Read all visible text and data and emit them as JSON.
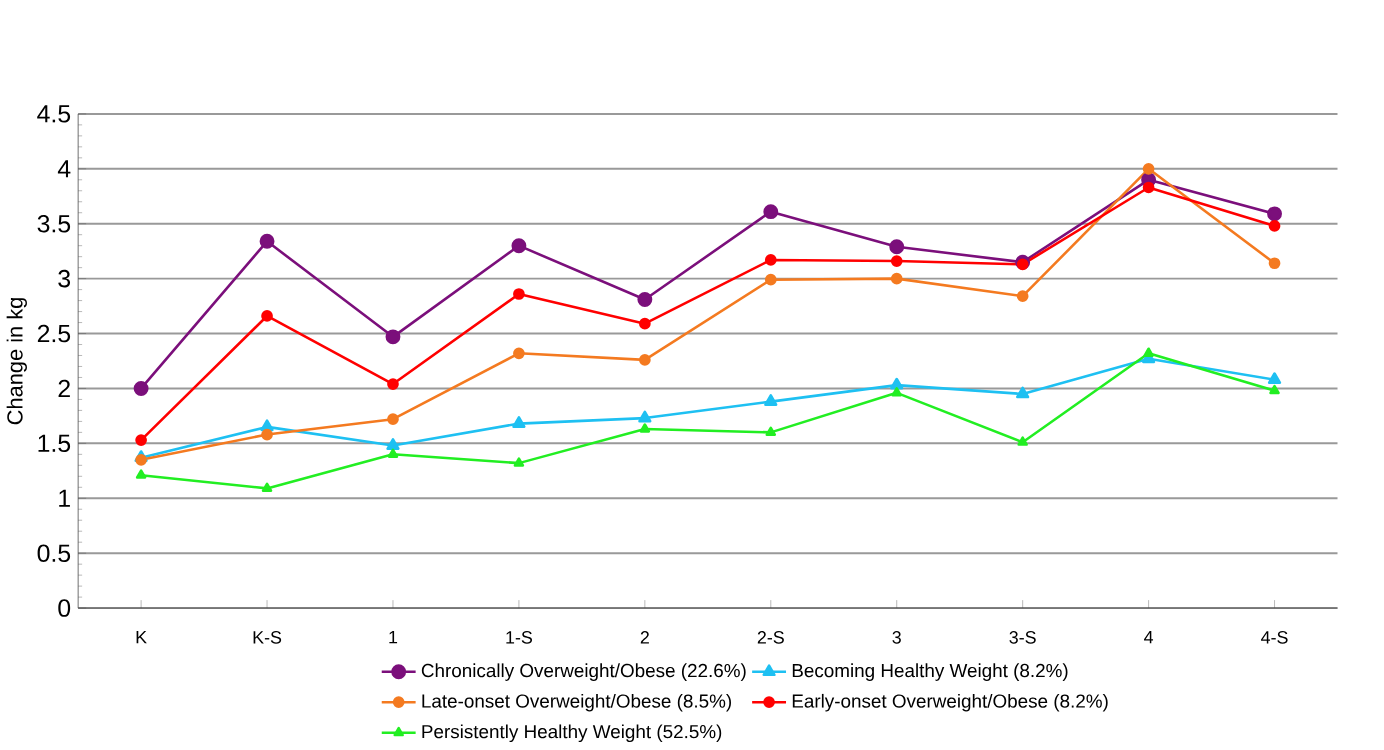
{
  "chart_data": {
    "type": "line",
    "ylabel": "Change in kg",
    "categories": [
      "K",
      "K-S",
      "1",
      "1-S",
      "2",
      "2-S",
      "3",
      "3-S",
      "4",
      "4-S"
    ],
    "ylim": [
      0,
      4.5
    ],
    "yticks": [
      0,
      0.5,
      1,
      1.5,
      2,
      2.5,
      3,
      3.5,
      4,
      4.5
    ],
    "grid": "y",
    "legend": "bottom",
    "series": [
      {
        "name": "Chronically Overweight/Obese (22.6%)",
        "color": "#7b0f7b",
        "marker": "circle",
        "values": [
          2.0,
          3.34,
          2.47,
          3.3,
          2.81,
          3.61,
          3.29,
          3.15,
          3.9,
          3.59
        ]
      },
      {
        "name": "Becoming Healthy Weight (8.2%)",
        "color": "#1ec0f2",
        "marker": "triangle",
        "values": [
          1.37,
          1.65,
          1.48,
          1.68,
          1.73,
          1.88,
          2.03,
          1.95,
          2.27,
          2.08
        ]
      },
      {
        "name": "Late-onset Overweight/Obese (8.5%)",
        "color": "#f47a20",
        "marker": "circle",
        "values": [
          1.35,
          1.58,
          1.72,
          2.32,
          2.26,
          2.99,
          3.0,
          2.84,
          4.0,
          3.14
        ]
      },
      {
        "name": "Early-onset Overweight/Obese (8.2%)",
        "color": "#ff0000",
        "marker": "circle",
        "values": [
          1.53,
          2.66,
          2.04,
          2.86,
          2.59,
          3.17,
          3.16,
          3.13,
          3.83,
          3.48
        ]
      },
      {
        "name": "Persistently Healthy Weight (52.5%)",
        "color": "#22ee22",
        "marker": "triangle",
        "values": [
          1.21,
          1.09,
          1.4,
          1.32,
          1.63,
          1.6,
          1.96,
          1.51,
          2.32,
          1.98
        ]
      }
    ]
  }
}
